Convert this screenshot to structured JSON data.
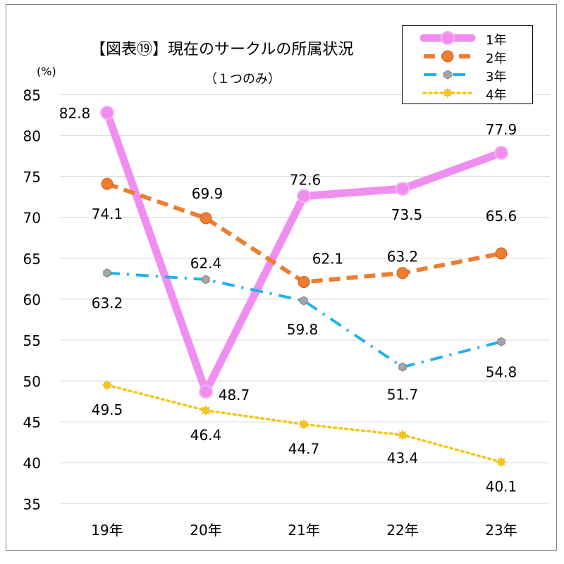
{
  "chart_data": {
    "type": "line",
    "title": "【図表⑲】現在のサークルの所属状況",
    "subtitle": "（１つのみ）",
    "ylabel": "(%)",
    "xlabel": "",
    "categories": [
      "19年",
      "20年",
      "21年",
      "22年",
      "23年"
    ],
    "ylim": [
      35,
      85
    ],
    "yticks": [
      35,
      40,
      45,
      50,
      55,
      60,
      65,
      70,
      75,
      80,
      85
    ],
    "grid": true,
    "legend_position": "top-right",
    "series": [
      {
        "name": "1年",
        "values": [
          82.8,
          48.7,
          72.6,
          73.5,
          77.9
        ],
        "color": "#f08ef0",
        "style": "solid"
      },
      {
        "name": "2年",
        "values": [
          74.1,
          69.9,
          62.1,
          63.2,
          65.6
        ],
        "color": "#ed7d31",
        "style": "dash"
      },
      {
        "name": "3年",
        "values": [
          63.2,
          62.4,
          59.8,
          51.7,
          54.8
        ],
        "color": "#1fb4e8",
        "style": "dashdot"
      },
      {
        "name": "4年",
        "values": [
          49.5,
          46.4,
          44.7,
          43.4,
          40.1
        ],
        "color": "#f5c518",
        "style": "dot"
      }
    ]
  }
}
